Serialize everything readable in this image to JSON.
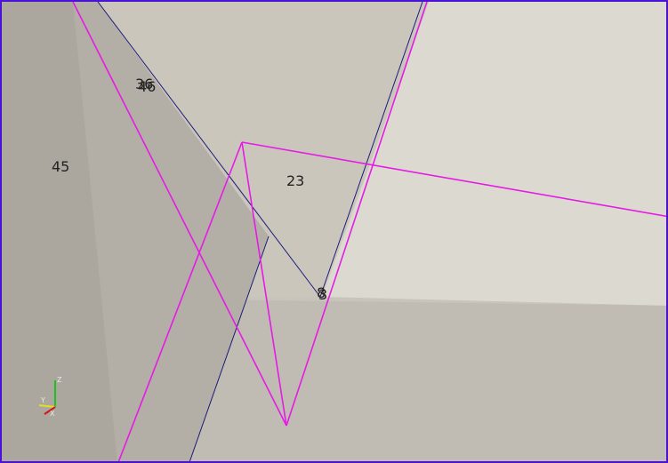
{
  "viewport": {
    "title": "",
    "colors": {
      "border": "#4a12d6",
      "edge_magenta": "#e61be6",
      "edge_navy": "#1b1b7a",
      "face_light": "#dcd9d0",
      "face_mid": "#c8c3b8",
      "face_dark": "#aaa59d",
      "face_shadow": "#bdb8b0"
    }
  },
  "labels": {
    "n45": "45",
    "n36": "36",
    "n46": "46",
    "n23": "23",
    "n8": "8",
    "n3": "3"
  },
  "axis_triad": {
    "z_label": "Z",
    "y_label": "Y",
    "x_label": "X"
  }
}
